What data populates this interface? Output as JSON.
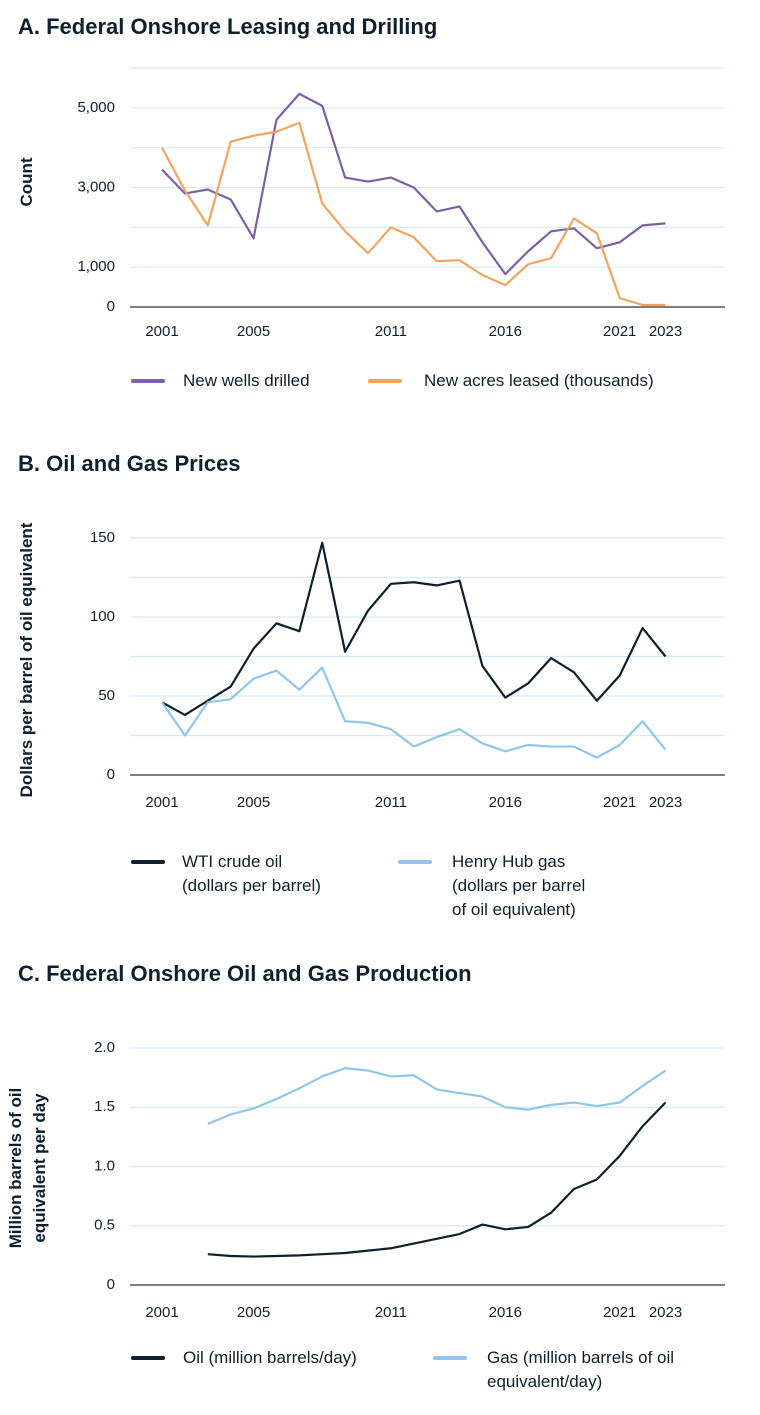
{
  "chart_data": [
    {
      "type": "line",
      "title": "A. Federal Onshore Leasing and Drilling",
      "y_label": "Count",
      "x": [
        2001,
        2002,
        2003,
        2004,
        2005,
        2006,
        2007,
        2008,
        2009,
        2010,
        2011,
        2012,
        2013,
        2014,
        2015,
        2016,
        2017,
        2018,
        2019,
        2020,
        2021,
        2022,
        2023
      ],
      "xlim": [
        1999.6,
        2025.6
      ],
      "xticks": [
        2001,
        2005,
        2011,
        2016,
        2021,
        2023
      ],
      "ylim": [
        0,
        6000
      ],
      "yticks": [
        0,
        {
          "value": 1000,
          "label": "1,000"
        },
        {
          "value": 3000,
          "label": "3,000"
        },
        {
          "value": 5000,
          "label": "5,000"
        }
      ],
      "ygrid": [
        0,
        1000,
        2000,
        3000,
        4000,
        5000,
        6000
      ],
      "grid": true,
      "series": [
        {
          "name": "New wells drilled",
          "color": "#7d5fa8",
          "values": [
            3450,
            2850,
            2950,
            2700,
            1725,
            4700,
            5350,
            5050,
            3250,
            3150,
            3250,
            3000,
            2400,
            2525,
            1625,
            825,
            1400,
            1900,
            1975,
            1475,
            1625,
            2050,
            2100
          ]
        },
        {
          "name": "New acres leased (thousands)",
          "color": "#f2a45e",
          "values": [
            4000,
            2925,
            2050,
            4150,
            4300,
            4400,
            4625,
            2600,
            1900,
            1350,
            2000,
            1750,
            1150,
            1175,
            800,
            550,
            1075,
            1225,
            2225,
            1850,
            225,
            50,
            50
          ]
        }
      ]
    },
    {
      "type": "line",
      "title": "B. Oil and Gas Prices",
      "y_label": "Dollars per barrel of oil equivalent",
      "x": [
        2001,
        2002,
        2003,
        2004,
        2005,
        2006,
        2007,
        2008,
        2009,
        2010,
        2011,
        2012,
        2013,
        2014,
        2015,
        2016,
        2017,
        2018,
        2019,
        2020,
        2021,
        2022,
        2023
      ],
      "xlim": [
        1999.6,
        2025.6
      ],
      "xticks": [
        2001,
        2005,
        2011,
        2016,
        2021,
        2023
      ],
      "ylim": [
        0,
        150
      ],
      "yticks": [
        0,
        50,
        100,
        150
      ],
      "ygrid": [
        0,
        25,
        50,
        75,
        100,
        125,
        150
      ],
      "grid": true,
      "series": [
        {
          "name": "WTI crude oil\n(dollars per barrel)",
          "color": "#0e1f2e",
          "values": [
            46,
            38,
            47,
            56,
            80,
            96,
            91,
            147,
            78,
            104,
            121,
            122,
            120,
            123,
            69,
            49,
            58,
            74,
            65,
            47,
            63,
            93,
            75
          ]
        },
        {
          "name": "Henry Hub gas\n(dollars per barrel\nof oil equivalent)",
          "color": "#8fc6ea",
          "values": [
            46,
            25,
            46,
            48,
            61,
            66,
            54,
            68,
            34,
            33,
            29,
            18,
            24,
            29,
            20,
            15,
            19,
            18,
            18,
            11,
            19,
            34,
            16
          ]
        }
      ]
    },
    {
      "type": "line",
      "title": "C. Federal Onshore Oil and Gas Production",
      "y_label": "Million barrels of oil\nequivalent per day",
      "x": [
        2003,
        2004,
        2005,
        2006,
        2007,
        2008,
        2009,
        2010,
        2011,
        2012,
        2013,
        2014,
        2015,
        2016,
        2017,
        2018,
        2019,
        2020,
        2021,
        2022,
        2023
      ],
      "xlim": [
        1999.6,
        2025.6
      ],
      "xticks": [
        2001,
        2005,
        2011,
        2016,
        2021,
        2023
      ],
      "ylim": [
        0,
        2
      ],
      "yticks": [
        0,
        0.5,
        {
          "value": 1,
          "label": "1.0"
        },
        1.5,
        {
          "value": 2,
          "label": "2.0"
        }
      ],
      "grid": true,
      "series": [
        {
          "name": "Oil (million barrels/day)",
          "color": "#0e1f2e",
          "values": [
            0.26,
            0.245,
            0.24,
            0.245,
            0.25,
            0.26,
            0.27,
            0.29,
            0.31,
            0.35,
            0.39,
            0.43,
            0.51,
            0.47,
            0.49,
            0.61,
            0.81,
            0.89,
            1.09,
            1.34,
            1.54
          ]
        },
        {
          "name": "Gas (million barrels of oil\nequivalent/day)",
          "color": "#8fc6ea",
          "values": [
            1.36,
            1.44,
            1.49,
            1.57,
            1.66,
            1.76,
            1.83,
            1.81,
            1.76,
            1.77,
            1.65,
            1.62,
            1.59,
            1.5,
            1.48,
            1.52,
            1.54,
            1.51,
            1.54,
            1.68,
            1.81
          ]
        }
      ]
    }
  ]
}
